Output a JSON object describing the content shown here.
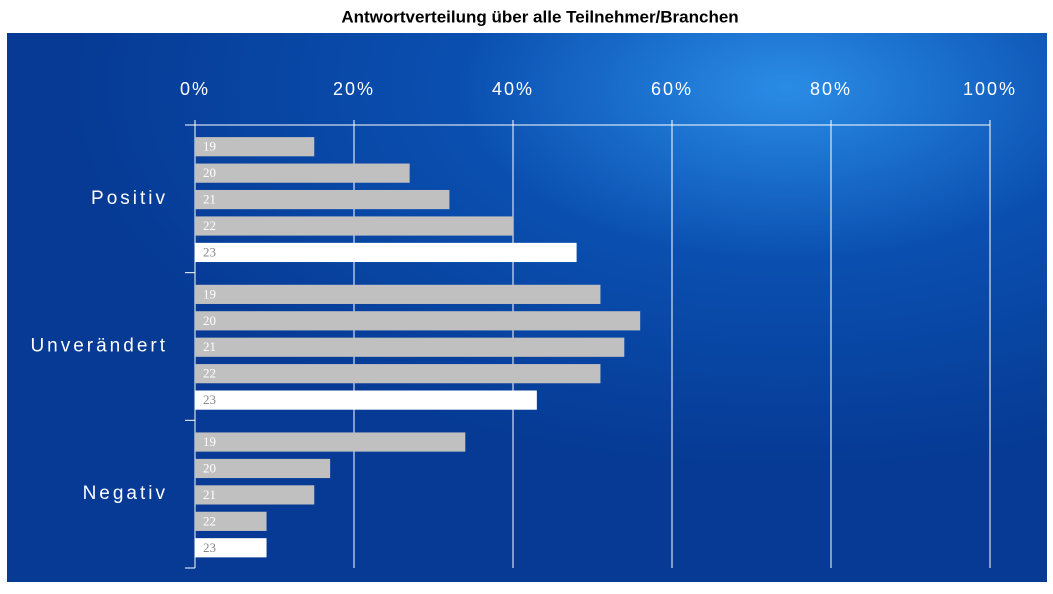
{
  "chart_data": {
    "type": "barh",
    "title": "Antwortverteilung über alle Teilnehmer/Branchen",
    "categories": [
      "Positiv",
      "Unverändert",
      "Negativ"
    ],
    "series": [
      {
        "name": "19",
        "color": "#c0c0c0",
        "values": [
          15,
          51,
          34
        ]
      },
      {
        "name": "20",
        "color": "#c0c0c0",
        "values": [
          27,
          56,
          17
        ]
      },
      {
        "name": "21",
        "color": "#c0c0c0",
        "values": [
          32,
          54,
          15
        ]
      },
      {
        "name": "22",
        "color": "#c0c0c0",
        "values": [
          40,
          51,
          9
        ]
      },
      {
        "name": "23",
        "color": "#ffffff",
        "values": [
          48,
          43,
          9
        ]
      }
    ],
    "xlim": [
      0,
      100
    ],
    "xticks": [
      {
        "value": 0,
        "label": "0%"
      },
      {
        "value": 20,
        "label": "20%"
      },
      {
        "value": 40,
        "label": "40%"
      },
      {
        "value": 60,
        "label": "60%"
      },
      {
        "value": 80,
        "label": "80%"
      },
      {
        "value": 100,
        "label": "100%"
      }
    ],
    "grid": true
  }
}
